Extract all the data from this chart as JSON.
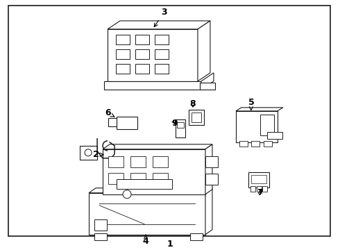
{
  "bg_color": "#ffffff",
  "border_color": "#000000",
  "line_color": "#1a1a1a",
  "lw": 0.8,
  "fig_w": 4.9,
  "fig_h": 3.6,
  "dpi": 100
}
